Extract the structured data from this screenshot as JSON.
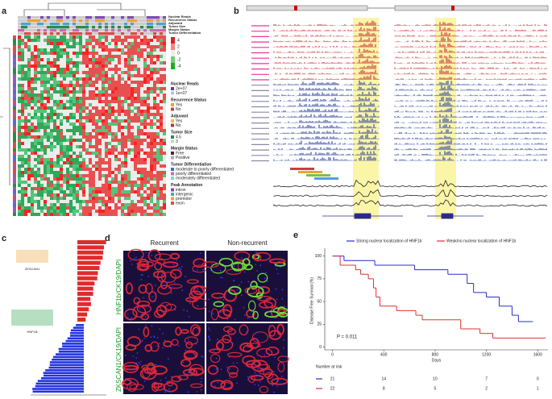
{
  "panel_labels": [
    "a",
    "b",
    "c",
    "d",
    "e"
  ],
  "heatmap": {
    "annotation_tracks": [
      "Nuclear Reads",
      "Recurrence Status",
      "Adjuvant",
      "Tumor Size",
      "Margin Status",
      "Tumor Differentiation"
    ],
    "scale_labels": [
      "4",
      "2",
      "0",
      "-2",
      "-4"
    ],
    "legend": [
      {
        "title": "Nuclear Reads",
        "items": [
          "2e+07",
          "1e+07"
        ]
      },
      {
        "title": "Recurrence Status",
        "items": [
          "Yes",
          "No"
        ]
      },
      {
        "title": "Adjuvant",
        "items": [
          "Yes",
          "No"
        ]
      },
      {
        "title": "Tumor Size",
        "items": [
          "4.5",
          "3"
        ]
      },
      {
        "title": "Margin Status",
        "items": [
          "Free",
          "Positive"
        ]
      },
      {
        "title": "Tumor Differentiation",
        "items": [
          "moderate to poorly differentiated",
          "poorly differentiated",
          "moderately differentiated"
        ]
      },
      {
        "title": "Peak Annotation",
        "items": [
          "intron",
          "intergenic",
          "promoter",
          "exon"
        ]
      }
    ]
  },
  "motifs": [
    "ZKSCAN1",
    "HNF1B"
  ],
  "images": {
    "columns": [
      "Recurrent",
      "Non-recurrent"
    ],
    "rows": [
      "HNF1b/CK19/DAPI",
      "ZKSCAN1/CK19/DAPI"
    ]
  },
  "chart_data": {
    "type": "step",
    "x_label": "Days",
    "y_label": "Disease Free Survival (%)",
    "annotation": "P = 0.011",
    "xlim": [
      -60,
      1680
    ],
    "ylim": [
      -3,
      105
    ],
    "xticks": [
      0,
      400,
      800,
      1200,
      1600
    ],
    "yticks": [
      0,
      25,
      50,
      75,
      100
    ],
    "series": [
      {
        "name": "Strong nuclear localization of HNF1b",
        "color": "#2b2bd0",
        "x": [
          0,
          90,
          330,
          640,
          900,
          1050,
          1100,
          1200,
          1300,
          1400,
          1450,
          1550
        ],
        "values": [
          100,
          95,
          90,
          85,
          80,
          70,
          60,
          55,
          45,
          35,
          28,
          28
        ]
      },
      {
        "name": "Weak/no nuclear localization of HNF1b",
        "color": "#e03030",
        "x": [
          0,
          60,
          180,
          220,
          280,
          320,
          340,
          370,
          500,
          650,
          700,
          1000,
          1150,
          1250,
          1650
        ],
        "values": [
          100,
          90,
          85,
          80,
          75,
          65,
          55,
          45,
          40,
          35,
          30,
          20,
          15,
          10,
          10
        ]
      }
    ],
    "risk_table": {
      "title": "Number at risk",
      "rows": [
        [
          21,
          14,
          10,
          7,
          0
        ],
        [
          22,
          8,
          5,
          2,
          1
        ]
      ]
    }
  }
}
